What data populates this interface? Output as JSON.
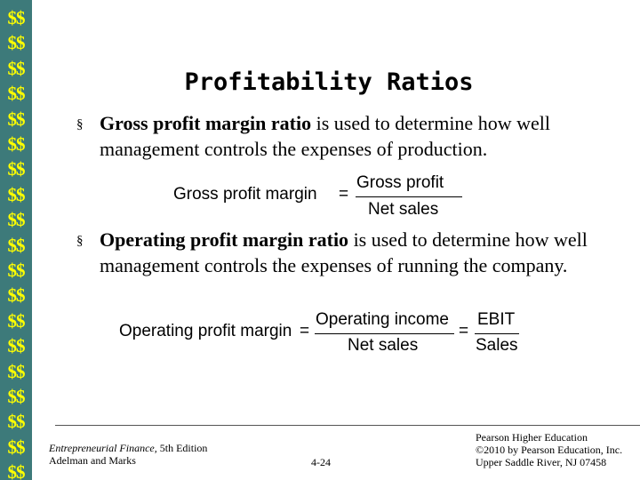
{
  "sidebar": {
    "symbol": "$$",
    "count": 19
  },
  "slide": {
    "title": "Profitability Ratios",
    "bullets": [
      {
        "term": "Gross profit margin ratio",
        "rest": " is used to determine how well management controls the expenses of production."
      },
      {
        "term": "Operating profit margin ratio",
        "rest": " is used to determine how well management controls the expenses of running the company."
      }
    ],
    "eq1": {
      "lhs": "Gross profit margin",
      "eq": "=",
      "num": "Gross profit",
      "den": "Net sales"
    },
    "eq2": {
      "lhs": "Operating profit margin",
      "eq1": "=",
      "num1": "Operating income",
      "den1": "Net sales",
      "eq2": "=",
      "num2": "EBIT",
      "den2": "Sales"
    }
  },
  "footer": {
    "book_title": "Entrepreneurial Finance,",
    "edition": " 5th Edition",
    "authors": "Adelman and Marks",
    "page": "4-24",
    "publisher_line1": "Pearson Higher Education",
    "publisher_line2": "©2010 by Pearson Education, Inc.",
    "publisher_line3": "Upper Saddle River, NJ 07458"
  }
}
